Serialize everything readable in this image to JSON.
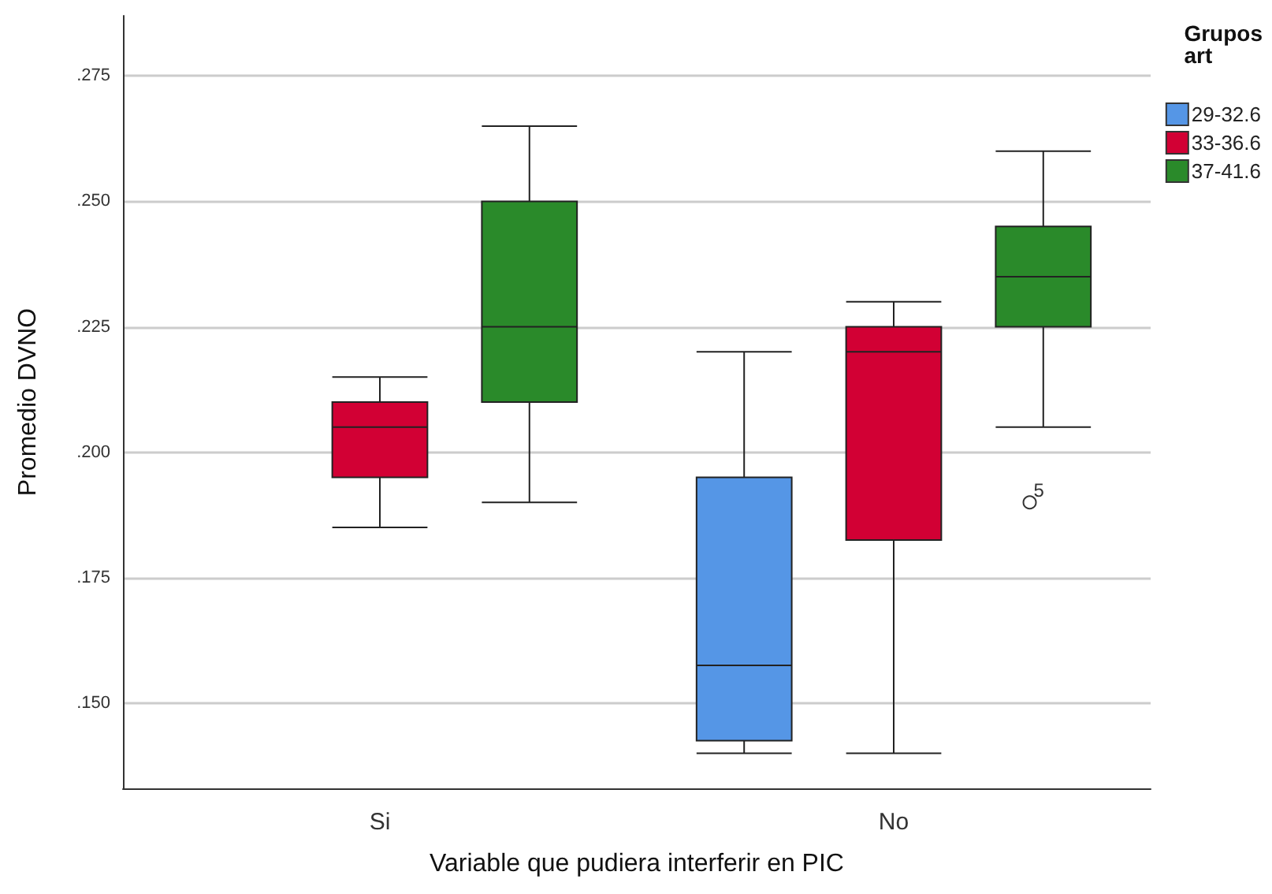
{
  "chart_data": {
    "type": "box",
    "xlabel": "Variable que pudiera interferir en PIC",
    "ylabel": "Promedio DVNO",
    "legend_title": "Grupos\nart",
    "categories": [
      "Si",
      "No"
    ],
    "series": [
      {
        "name": "29-32.6",
        "color": "#5596e6",
        "boxes": [
          null,
          {
            "low": 0.14,
            "q1": 0.1425,
            "median": 0.1575,
            "q3": 0.195,
            "high": 0.22
          }
        ]
      },
      {
        "name": "33-36.6",
        "color": "#d20034",
        "boxes": [
          {
            "low": 0.185,
            "q1": 0.195,
            "median": 0.205,
            "q3": 0.21,
            "high": 0.215
          },
          {
            "low": 0.14,
            "q1": 0.1825,
            "median": 0.22,
            "q3": 0.225,
            "high": 0.23
          }
        ]
      },
      {
        "name": "37-41.6",
        "color": "#2a8a2a",
        "boxes": [
          {
            "low": 0.19,
            "q1": 0.21,
            "median": 0.225,
            "q3": 0.25,
            "high": 0.265
          },
          {
            "low": 0.205,
            "q1": 0.225,
            "median": 0.235,
            "q3": 0.245,
            "high": 0.26,
            "outliers": [
              0.19
            ]
          }
        ]
      }
    ],
    "annotations": [
      "5"
    ],
    "ylim": [
      0.133,
      0.287
    ],
    "yticks": [
      {
        "value": 0.15,
        "label": ".150"
      },
      {
        "value": 0.175,
        "label": ".175"
      },
      {
        "value": 0.2,
        "label": ".200"
      },
      {
        "value": 0.225,
        "label": ".225"
      },
      {
        "value": 0.25,
        "label": ".250"
      },
      {
        "value": 0.275,
        "label": ".275"
      }
    ],
    "grid": "y",
    "legend": "top right"
  }
}
